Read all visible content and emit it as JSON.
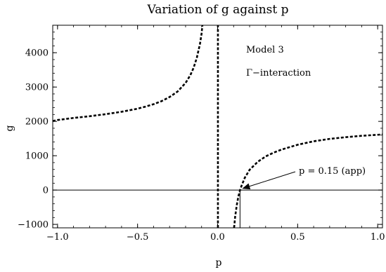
{
  "chart_data": {
    "type": "line",
    "title": "Variation of g against p",
    "xlabel": "p",
    "ylabel": "g",
    "xlim": [
      -1.03,
      1.03
    ],
    "ylim": [
      -1100,
      4800
    ],
    "x_ticks": [
      -1.0,
      -0.5,
      0.0,
      0.5,
      1.0
    ],
    "x_tick_labels": [
      "−1.0",
      "−0.5",
      "0.0",
      "0.5",
      "1.0"
    ],
    "y_ticks": [
      -1000,
      0,
      1000,
      2000,
      3000,
      4000
    ],
    "y_tick_labels": [
      "−1000",
      "0",
      "1000",
      "2000",
      "3000",
      "4000"
    ],
    "grid": false,
    "series": [
      {
        "style": "dashed",
        "segments": [
          {
            "x": [
              -1.03,
              -1.0,
              -0.9,
              -0.8,
              -0.7,
              -0.6,
              -0.5,
              -0.45,
              -0.4,
              -0.35,
              -0.3,
              -0.25,
              -0.2,
              -0.17,
              -0.15,
              -0.13,
              -0.11,
              -0.1,
              -0.095
            ],
            "y": [
              2010,
              2040,
              2100,
              2150,
              2210,
              2280,
              2370,
              2430,
              2500,
              2590,
              2710,
              2870,
              3120,
              3350,
              3560,
              3850,
              4260,
              4560,
              4800
            ]
          },
          {
            "x": [
              0.002,
              0.002
            ],
            "y": [
              -1100,
              4800
            ]
          },
          {
            "x": [
              0.103,
              0.11,
              0.12,
              0.13,
              0.14,
              0.15,
              0.17,
              0.2,
              0.25,
              0.3,
              0.35,
              0.4,
              0.5,
              0.6,
              0.7,
              0.8,
              0.9,
              1.0,
              1.03
            ],
            "y": [
              -1100,
              -760,
              -430,
              -180,
              0,
              130,
              360,
              590,
              820,
              980,
              1090,
              1180,
              1320,
              1420,
              1490,
              1540,
              1580,
              1610,
              1620
            ]
          }
        ]
      }
    ],
    "reference_lines": [
      {
        "orientation": "horizontal",
        "y": 0
      },
      {
        "orientation": "vertical",
        "x": 0.14,
        "y_from": -1100,
        "y_to": 0
      }
    ],
    "annotations": {
      "model": "Model 3",
      "interaction": "Γ−interaction",
      "point_label": "p = 0.15 (app)",
      "arrow_target": [
        0.14,
        0
      ]
    }
  }
}
